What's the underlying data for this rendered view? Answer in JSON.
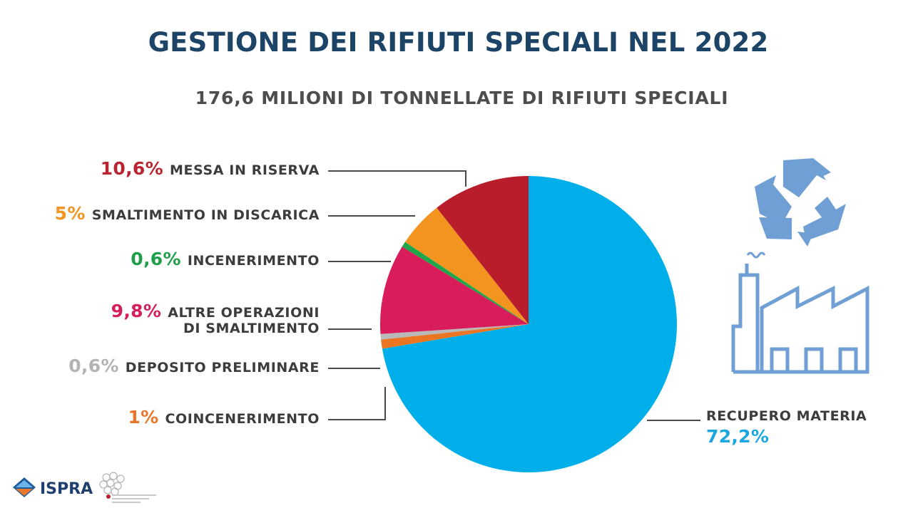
{
  "title": "GESTIONE DEI RIFIUTI SPECIALI NEL 2022",
  "subtitle": "176,6 MILIONI DI TONNELLATE DI RIFIUTI SPECIALI",
  "colors": {
    "title": "#1c4466",
    "subtitle": "#4d4d4d",
    "text": "#3c3c3c",
    "leader": "#4a4a4a",
    "icon": "#6f9fd4"
  },
  "logos": {
    "ispra": "ISPRA"
  },
  "icons": [
    "recycle-icon",
    "factory-icon"
  ],
  "chart_data": {
    "type": "pie",
    "title": "GESTIONE DEI RIFIUTI SPECIALI NEL 2022",
    "subtitle": "176,6 MILIONI DI TONNELLATE DI RIFIUTI SPECIALI",
    "slices": [
      {
        "label": "RECUPERO MATERIA",
        "pct_label": "72,2%",
        "value": 72.2,
        "color": "#00aeea",
        "text_color": "#1ba6df"
      },
      {
        "label": "COINCENERIMENTO",
        "pct_label": "1%",
        "value": 1.0,
        "color": "#ea7523",
        "text_color": "#e8772c"
      },
      {
        "label": "DEPOSITO PRELIMINARE",
        "pct_label": "0,6%",
        "value": 0.6,
        "color": "#b9b9b9",
        "text_color": "#b3b3b3"
      },
      {
        "label": "ALTRE OPERAZIONI\nDI SMALTIMENTO",
        "pct_label": "9,8%",
        "value": 9.8,
        "color": "#d91d5a",
        "text_color": "#d51e5b"
      },
      {
        "label": "INCENERIMENTO",
        "pct_label": "0,6%",
        "value": 0.6,
        "color": "#1ea64a",
        "text_color": "#1f9f4a"
      },
      {
        "label": "SMALTIMENTO IN DISCARICA",
        "pct_label": "5%",
        "value": 5.0,
        "color": "#f39421",
        "text_color": "#f39423"
      },
      {
        "label": "MESSA IN RISERVA",
        "pct_label": "10,6%",
        "value": 10.6,
        "color": "#b91c2a",
        "text_color": "#b82432"
      }
    ]
  }
}
